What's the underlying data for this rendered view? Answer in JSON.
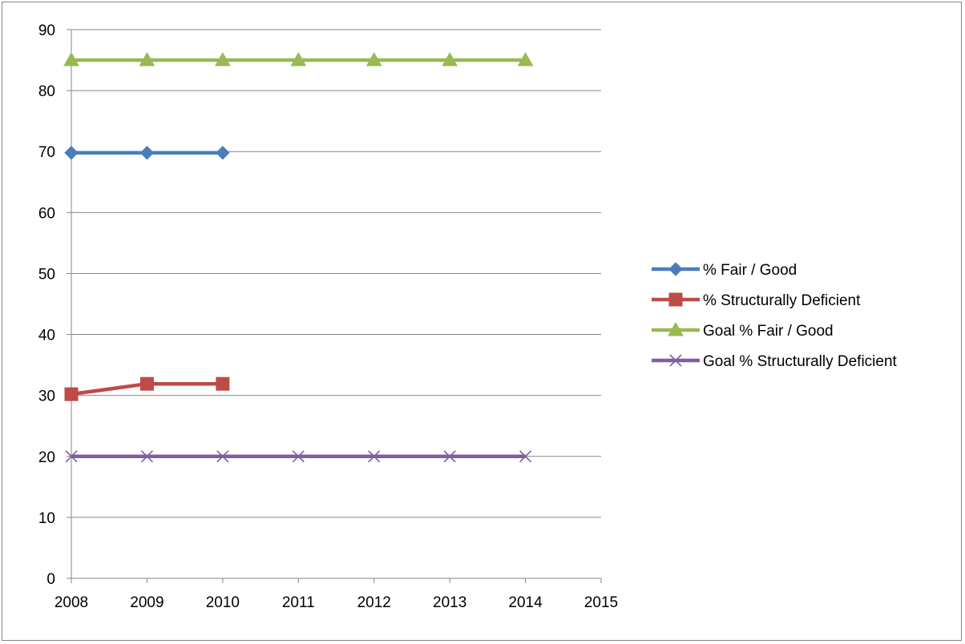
{
  "chart_data": {
    "type": "line",
    "title": "",
    "xlabel": "",
    "ylabel": "",
    "x": [
      2008,
      2009,
      2010,
      2011,
      2012,
      2013,
      2014
    ],
    "xlim": [
      2008,
      2015
    ],
    "ylim": [
      0,
      90
    ],
    "x_ticks": [
      "2008",
      "2009",
      "2010",
      "2011",
      "2012",
      "2013",
      "2014",
      "2015"
    ],
    "y_ticks": [
      "0",
      "10",
      "20",
      "30",
      "40",
      "50",
      "60",
      "70",
      "80",
      "90"
    ],
    "grid": "horizontal",
    "legend_position": "right",
    "series": [
      {
        "name": "% Fair / Good",
        "color": "#4a7ebb",
        "marker": "diamond",
        "values": [
          69.8,
          69.8,
          69.8,
          null,
          null,
          null,
          null
        ]
      },
      {
        "name": "% Structurally Deficient",
        "color": "#be4b48",
        "marker": "square",
        "values": [
          30.2,
          31.9,
          31.9,
          null,
          null,
          null,
          null
        ]
      },
      {
        "name": "Goal % Fair / Good",
        "color": "#98b954",
        "marker": "triangle",
        "values": [
          85,
          85,
          85,
          85,
          85,
          85,
          85
        ]
      },
      {
        "name": "Goal % Structurally Deficient",
        "color": "#7d60a0",
        "marker": "x",
        "values": [
          20,
          20,
          20,
          20,
          20,
          20,
          20
        ]
      }
    ]
  }
}
